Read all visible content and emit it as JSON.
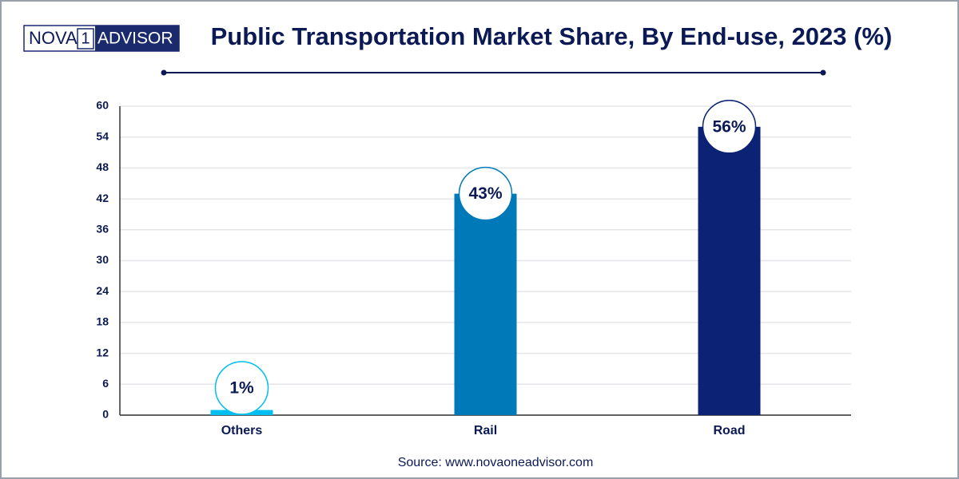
{
  "logo": {
    "left": "NOVA",
    "mark": "1",
    "right": "ADVISOR"
  },
  "chart_data": {
    "type": "bar",
    "title": "Public Transportation Market Share, By End-use, 2023 (%)",
    "categories": [
      "Others",
      "Rail",
      "Road"
    ],
    "values": [
      1,
      43,
      56
    ],
    "value_labels": [
      "1%",
      "43%",
      "56%"
    ],
    "colors": [
      "#00bff0",
      "#0079b8",
      "#0b2275"
    ],
    "ylim": [
      0,
      60
    ],
    "yticks": [
      0,
      6,
      12,
      18,
      24,
      30,
      36,
      42,
      48,
      54,
      60
    ],
    "grid": true
  },
  "source": "Source: www.novaoneadvisor.com"
}
